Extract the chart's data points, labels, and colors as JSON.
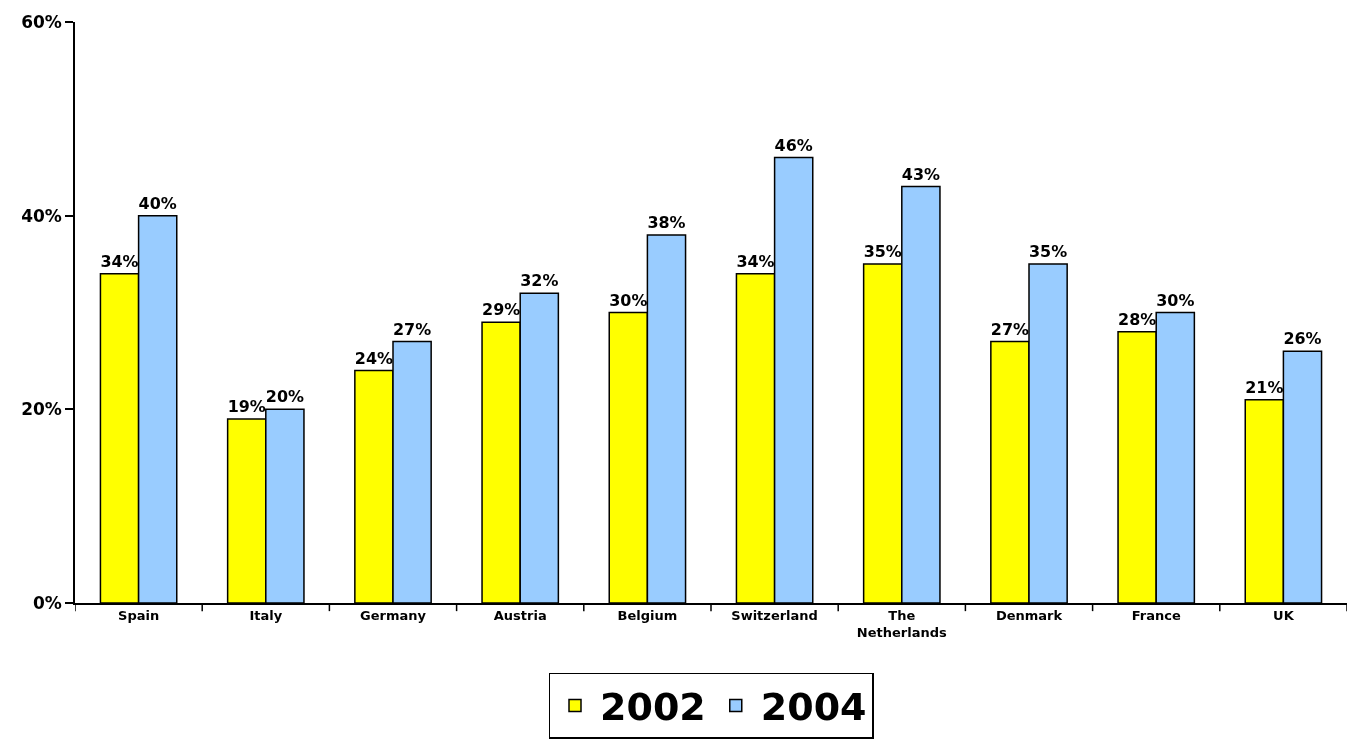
{
  "chart_data": {
    "type": "bar",
    "categories": [
      "Spain",
      "Italy",
      "Germany",
      "Austria",
      "Belgium",
      "Switzerland",
      "The Netherlands",
      "Denmark",
      "France",
      "UK"
    ],
    "series": [
      {
        "name": "2002",
        "color": "#ffff00",
        "values": [
          34,
          19,
          24,
          29,
          30,
          34,
          35,
          27,
          28,
          21
        ],
        "value_labels": [
          "34%",
          "19%",
          "24%",
          "29%",
          "30%",
          "34%",
          "35%",
          "27%",
          "28%",
          "21%"
        ]
      },
      {
        "name": "2004",
        "color": "#99ccff",
        "values": [
          40,
          20,
          27,
          32,
          38,
          46,
          43,
          35,
          30,
          26
        ],
        "value_labels": [
          "40%",
          "20%",
          "27%",
          "32%",
          "38%",
          "46%",
          "43%",
          "35%",
          "30%",
          "26%"
        ]
      }
    ],
    "ylim": [
      0,
      60
    ],
    "yticks": [
      {
        "value": 0,
        "label": "0%"
      },
      {
        "value": 20,
        "label": "20%"
      },
      {
        "value": 40,
        "label": "40%"
      },
      {
        "value": 60,
        "label": "60%"
      }
    ],
    "grid": false,
    "legend": "bottom"
  }
}
